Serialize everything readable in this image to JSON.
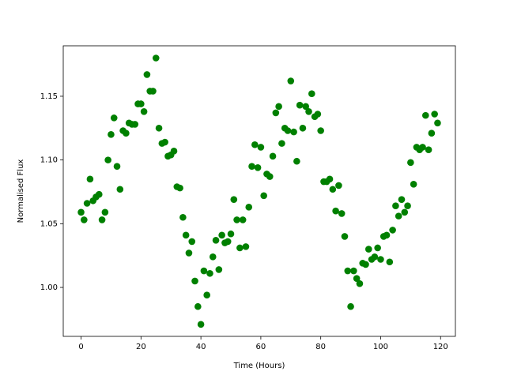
{
  "chart_data": {
    "type": "scatter",
    "xlabel": "Time (Hours)",
    "ylabel": "Normalised Flux",
    "color": "#008000",
    "xlim": [
      -5.95,
      124.95
    ],
    "ylim": [
      0.9616,
      1.1896
    ],
    "xticks": [
      0,
      20,
      40,
      60,
      80,
      100,
      120
    ],
    "yticks": [
      {
        "value": 1,
        "label": "1.00"
      },
      1.05,
      {
        "value": 1.1,
        "label": "1.10"
      },
      1.15
    ],
    "x": [
      0,
      1,
      2,
      3,
      4,
      5,
      6,
      7,
      8,
      9,
      10,
      11,
      12,
      13,
      14,
      15,
      16,
      17,
      18,
      19,
      20,
      21,
      22,
      23,
      24,
      25,
      26,
      27,
      28,
      29,
      30,
      31,
      32,
      33,
      34,
      35,
      36,
      37,
      38,
      39,
      40,
      41,
      42,
      43,
      44,
      45,
      46,
      47,
      48,
      49,
      50,
      51,
      52,
      53,
      54,
      55,
      56,
      57,
      58,
      59,
      60,
      61,
      62,
      63,
      64,
      65,
      66,
      67,
      68,
      69,
      70,
      71,
      72,
      73,
      74,
      75,
      76,
      77,
      78,
      79,
      80,
      81,
      82,
      83,
      84,
      85,
      86,
      87,
      88,
      89,
      90,
      91,
      92,
      93,
      94,
      95,
      96,
      97,
      98,
      99,
      100,
      101,
      102,
      103,
      104,
      105,
      106,
      107,
      108,
      109,
      110,
      111,
      112,
      113,
      114,
      115,
      116,
      117,
      118,
      119
    ],
    "y": [
      1.059,
      1.053,
      1.066,
      1.085,
      1.068,
      1.071,
      1.073,
      1.053,
      1.059,
      1.1,
      1.12,
      1.133,
      1.095,
      1.077,
      1.123,
      1.121,
      1.129,
      1.128,
      1.128,
      1.144,
      1.144,
      1.138,
      1.167,
      1.154,
      1.154,
      1.18,
      1.125,
      1.113,
      1.114,
      1.103,
      1.104,
      1.107,
      1.079,
      1.078,
      1.055,
      1.041,
      1.027,
      1.036,
      1.005,
      0.985,
      0.971,
      1.013,
      0.994,
      1.011,
      1.024,
      1.037,
      1.014,
      1.041,
      1.035,
      1.036,
      1.042,
      1.069,
      1.053,
      1.031,
      1.053,
      1.032,
      1.063,
      1.095,
      1.112,
      1.094,
      1.11,
      1.072,
      1.089,
      1.087,
      1.103,
      1.137,
      1.142,
      1.113,
      1.125,
      1.123,
      1.162,
      1.122,
      1.099,
      1.143,
      1.125,
      1.142,
      1.138,
      1.152,
      1.134,
      1.136,
      1.123,
      1.083,
      1.083,
      1.085,
      1.077,
      1.06,
      1.08,
      1.058,
      1.04,
      1.013,
      0.985,
      1.013,
      1.007,
      1.003,
      1.019,
      1.018,
      1.03,
      1.022,
      1.024,
      1.031,
      1.022,
      1.04,
      1.041,
      1.02,
      1.045,
      1.064,
      1.056,
      1.069,
      1.059,
      1.064,
      1.098,
      1.081,
      1.11,
      1.108,
      1.11,
      1.135,
      1.108,
      1.121,
      1.136,
      1.129
    ]
  }
}
